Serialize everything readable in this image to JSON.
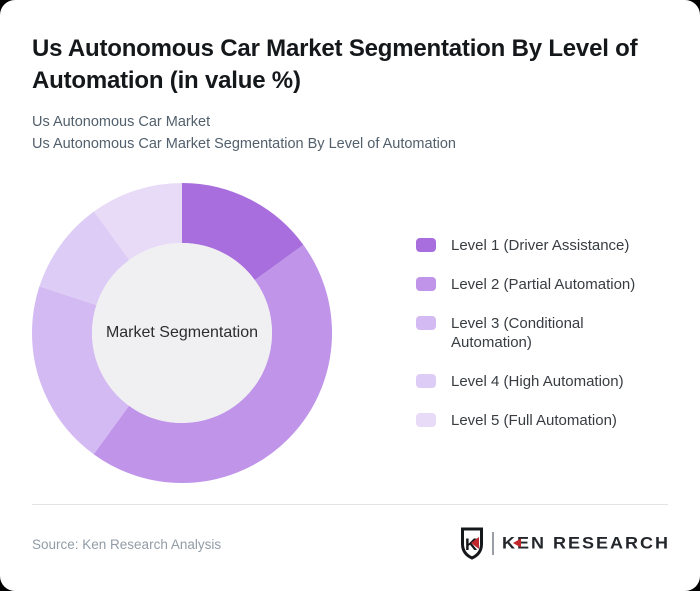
{
  "header": {
    "title_lines": [
      "Us Autonomous Car Market Segmentation By Level of",
      "Automation (in value %)"
    ],
    "subtitle_lines": [
      "Us Autonomous Car Market",
      "Us Autonomous Car Market Segmentation By Level of Automation"
    ]
  },
  "chart_data": {
    "type": "pie",
    "variant": "donut",
    "title": "Us Autonomous Car Market Segmentation By Level of Automation (in value %)",
    "center_label": "Market Segmentation",
    "unit": "% of value",
    "start_angle_deg": 0,
    "direction": "clockwise",
    "legend_position": "right",
    "categories": [
      "Level 1 (Driver Assistance)",
      "Level 2 (Partial Automation)",
      "Level 3 (Conditional Automation)",
      "Level 4 (High Automation)",
      "Level 5 (Full Automation)"
    ],
    "values": [
      15,
      45,
      20,
      10,
      10
    ],
    "colors": [
      "#a96edd",
      "#bf94e9",
      "#d4baf2",
      "#ddccf5",
      "#e8dbf8"
    ],
    "hole_color": "#f0eff1",
    "outer_radius_px": 150,
    "inner_radius_px": 90
  },
  "footer": {
    "source": "Source: Ken Research Analysis",
    "logo": {
      "mark_letter": "K",
      "brand_name": "KEN RESEARCH",
      "accent_color": "#c1272d"
    }
  }
}
